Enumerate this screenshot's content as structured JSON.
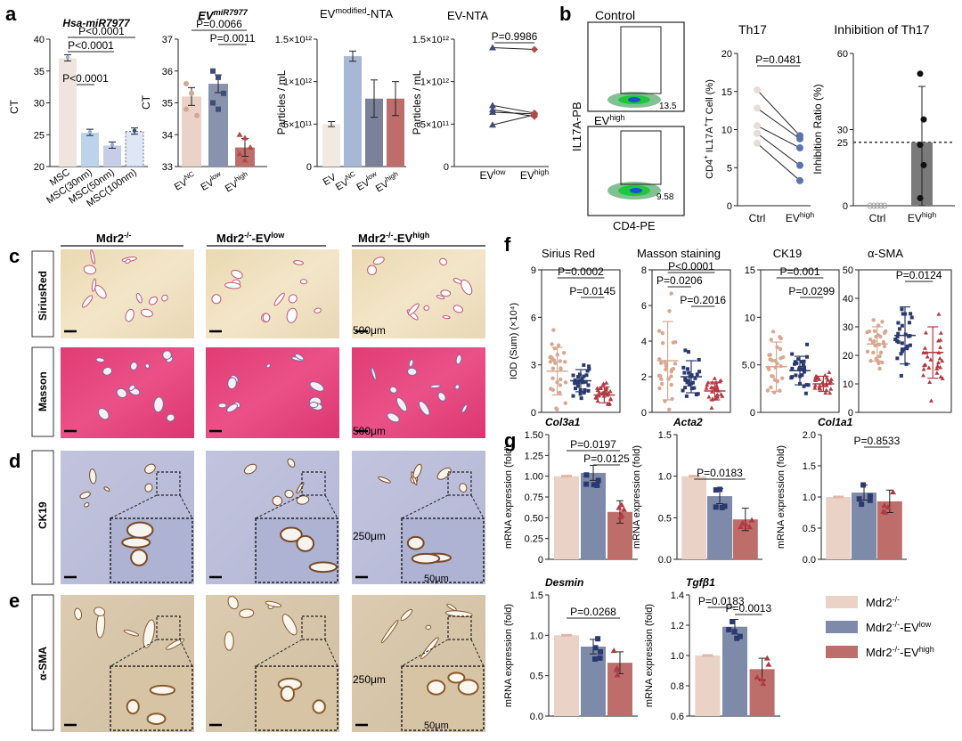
{
  "panel_letters": {
    "a": "a",
    "b": "b",
    "c": "c",
    "d": "d",
    "e": "e",
    "f": "f",
    "g": "g"
  },
  "groups": [
    "Mdr2-/-",
    "Mdr2-/--EVlow",
    "Mdr2-/--EVhigh"
  ],
  "row_labels": {
    "c1": "SiriusRed",
    "c2": "Masson",
    "d": "CK19",
    "e": "α-SMA"
  },
  "scale_bars": {
    "c1": "500μm",
    "c2": "500μm",
    "d": "250μm",
    "d_inset": "50μm",
    "e": "250μm",
    "e_inset": "50μm"
  },
  "flow": {
    "control_label": "Control",
    "evhigh_label": "EVhigh",
    "yaxis": "IL17A-PB",
    "xaxis": "CD4-PE",
    "gate_control": "13.5",
    "gate_evhigh": "9.58"
  },
  "legend": [
    {
      "name": "Mdr2-/-",
      "color": "#ead2c7"
    },
    {
      "name": "Mdr2-/--EVlow",
      "color": "#7d8aa9"
    },
    {
      "name": "Mdr2-/--EVhigh",
      "color": "#bd6e6a"
    }
  ],
  "colors": {
    "beige": "#ead2c7",
    "blue": "#56648a",
    "rose": "#bd6e6a",
    "lightblue": "#c7d6ea",
    "navy": "#1f2d5a"
  },
  "chart_data": [
    {
      "type": "bar",
      "id": "a1",
      "title": "Hsa-miR7977",
      "ylabel": "CT",
      "ylim": [
        20,
        40
      ],
      "yticks": [
        20,
        25,
        30,
        35,
        40
      ],
      "categories": [
        "MSC",
        "MSC(30nm)",
        "MSC(50nm)",
        "MSC(100nm)"
      ],
      "values": [
        37,
        25.3,
        23.3,
        25.5
      ],
      "pvalues": [
        "P<0.0001",
        "P<0.0001",
        "P<0.0001"
      ]
    },
    {
      "type": "bar",
      "id": "a2",
      "title": "EV miR7977",
      "ylabel": "CT",
      "ylim": [
        33,
        37
      ],
      "yticks": [
        33,
        34,
        35,
        36,
        37
      ],
      "categories": [
        "EVNC",
        "EVlow",
        "EVhigh"
      ],
      "values": [
        35.2,
        35.6,
        33.6
      ],
      "pvalues": [
        "P=0.0066",
        "P=0.0011"
      ]
    },
    {
      "type": "bar",
      "id": "a3",
      "title": "EV modified-NTA",
      "ylabel": "Particles / mL",
      "ylim": [
        0,
        1500000000000.0
      ],
      "yticks_labels": [
        "0",
        "5×10¹¹",
        "1×10¹²",
        "1.5×10¹²"
      ],
      "categories": [
        "EV",
        "EVNC",
        "EVlow",
        "EVhigh"
      ],
      "values": [
        500000000000.0,
        1300000000000.0,
        800000000000.0,
        800000000000.0
      ]
    },
    {
      "type": "line",
      "id": "a4",
      "title": "EV-NTA",
      "ylabel": "Particles / mL",
      "ylim": [
        0,
        1500000000000.0
      ],
      "yticks_labels": [
        "0",
        "5×10¹¹",
        "1×10¹²",
        "1.5×10¹²"
      ],
      "categories": [
        "EVlow",
        "EVhigh"
      ],
      "pairs": [
        [
          1400000000000.0,
          1380000000000.0
        ],
        [
          720000000000.0,
          630000000000.0
        ],
        [
          670000000000.0,
          590000000000.0
        ],
        [
          490000000000.0,
          610000000000.0
        ],
        [
          640000000000.0,
          620000000000.0
        ]
      ],
      "pvalues": [
        "P=0.9986"
      ]
    },
    {
      "type": "line",
      "id": "b1",
      "title": "Th17",
      "ylabel": "CD4+IL17A+T Cell (%)",
      "ylim": [
        0,
        20
      ],
      "yticks": [
        0,
        5,
        10,
        15,
        20
      ],
      "categories": [
        "Ctrl",
        "EVhigh"
      ],
      "pairs": [
        [
          15.2,
          9.2
        ],
        [
          12.8,
          8.8
        ],
        [
          10.5,
          7.6
        ],
        [
          9.5,
          5.3
        ],
        [
          8.2,
          3.3
        ]
      ],
      "pvalues": [
        "P=0.0481"
      ]
    },
    {
      "type": "bar",
      "id": "b2",
      "title": "Inhibition of Th17",
      "ylabel": "Inhibition Ratio (%)",
      "ylim": [
        0,
        60
      ],
      "yticks": [
        0,
        30,
        60
      ],
      "reference_line": 25,
      "reference_label": "25",
      "categories": [
        "Ctrl",
        "EVhigh"
      ],
      "values": [
        0,
        25
      ],
      "points": [
        [
          0,
          0,
          0,
          0,
          0
        ],
        [
          52,
          34,
          24,
          16,
          3
        ]
      ]
    },
    {
      "type": "scatter",
      "id": "f1",
      "title": "Sirius Red",
      "ylabel": "IOD (Sum) (×10⁴)",
      "ylim": [
        0,
        9
      ],
      "yticks": [
        0,
        3,
        6,
        9
      ],
      "categories": [
        "Mdr2-/-",
        "Mdr2-/--EVlow",
        "Mdr2-/--EVhigh"
      ],
      "means": [
        2.6,
        2.0,
        1.1
      ],
      "sd": [
        1.5,
        0.7,
        0.5
      ],
      "pvalues": [
        "P=0.0002",
        "P=0.0145"
      ]
    },
    {
      "type": "scatter",
      "id": "f2",
      "title": "Masson staining",
      "ylim": [
        0,
        8
      ],
      "yticks": [
        0,
        2,
        4,
        6,
        8
      ],
      "categories": [
        "Mdr2-/-",
        "Mdr2-/--EVlow",
        "Mdr2-/--EVhigh"
      ],
      "means": [
        2.9,
        2.0,
        1.2
      ],
      "sd": [
        2.2,
        0.9,
        0.5
      ],
      "pvalues": [
        "P<0.0001",
        "P=0.0206",
        "P=0.2016"
      ]
    },
    {
      "type": "scatter",
      "id": "f3",
      "title": "CK19",
      "ylim": [
        0,
        15
      ],
      "yticks": [
        0,
        5.0,
        10,
        15
      ],
      "categories": [
        "Mdr2-/-",
        "Mdr2-/--EVlow",
        "Mdr2-/--EVhigh"
      ],
      "means": [
        4.8,
        4.4,
        3.0
      ],
      "sd": [
        2.6,
        1.5,
        0.8
      ],
      "pvalues": [
        "P=0.001",
        "P=0.0299"
      ]
    },
    {
      "type": "scatter",
      "id": "f4",
      "title": "α-SMA",
      "ylim": [
        0,
        50
      ],
      "yticks": [
        0,
        10,
        20,
        30,
        40,
        50
      ],
      "categories": [
        "Mdr2-/-",
        "Mdr2-/--EVlow",
        "Mdr2-/--EVhigh"
      ],
      "means": [
        24,
        27,
        21
      ],
      "sd": [
        6,
        10,
        9
      ],
      "pvalues": [
        "P=0.0124"
      ]
    },
    {
      "type": "bar",
      "id": "g1",
      "title": "Col3a1",
      "ylabel": "mRNA expression (fold)",
      "ylim": [
        0,
        1.5
      ],
      "yticks": [
        0,
        0.25,
        0.5,
        0.75,
        1.0,
        1.25,
        1.5
      ],
      "categories": [
        "Mdr2-/-",
        "Mdr2-/--EVlow",
        "Mdr2-/--EVhigh"
      ],
      "values": [
        1.0,
        1.04,
        0.57
      ],
      "pvalues": [
        "P=0.0197",
        "P=0.0125"
      ]
    },
    {
      "type": "bar",
      "id": "g2",
      "title": "Acta2",
      "ylabel": "mRNA expression (fold)",
      "ylim": [
        0,
        1.5
      ],
      "yticks": [
        0,
        0.5,
        1.0,
        1.5
      ],
      "categories": [
        "Mdr2-/-",
        "Mdr2-/--EVlow",
        "Mdr2-/--EVhigh"
      ],
      "values": [
        1.0,
        0.76,
        0.48
      ],
      "pvalues": [
        "P=0.0183"
      ]
    },
    {
      "type": "bar",
      "id": "g3",
      "title": "Col1a1",
      "ylabel": "mRNA expression (fold)",
      "ylim": [
        0,
        2.0
      ],
      "yticks": [
        0,
        0.5,
        1.0,
        1.5,
        2.0
      ],
      "categories": [
        "Mdr2-/-",
        "Mdr2-/--EVlow",
        "Mdr2-/--EVhigh"
      ],
      "values": [
        1.0,
        1.07,
        0.93
      ],
      "pvalues": [
        "P=0.8533"
      ]
    },
    {
      "type": "bar",
      "id": "g4",
      "title": "Desmin",
      "ylabel": "mRNA expression (fold)",
      "ylim": [
        0,
        1.5
      ],
      "yticks": [
        0,
        0.5,
        1.0,
        1.5
      ],
      "categories": [
        "Mdr2-/-",
        "Mdr2-/--EVlow",
        "Mdr2-/--EVhigh"
      ],
      "values": [
        1.0,
        0.86,
        0.66
      ],
      "pvalues": [
        "P=0.0268"
      ]
    },
    {
      "type": "bar",
      "id": "g5",
      "title": "Tgfβ1",
      "ylabel": "mRNA expression (fold)",
      "ylim": [
        0.6,
        1.4
      ],
      "yticks": [
        0.6,
        0.8,
        1.0,
        1.2,
        1.4
      ],
      "categories": [
        "Mdr2-/-",
        "Mdr2-/--EVlow",
        "Mdr2-/--EVhigh"
      ],
      "values": [
        1.0,
        1.19,
        0.91
      ],
      "pvalues": [
        "P=0.0183",
        "P=0.0013"
      ]
    }
  ]
}
